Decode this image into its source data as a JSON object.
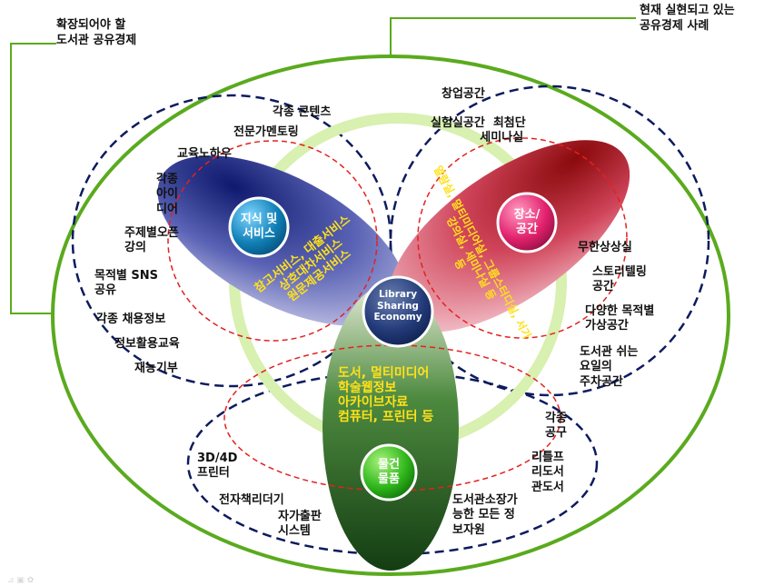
{
  "callouts": {
    "left": "확장되어야 할\n도서관 공유경제",
    "right": "현재 실현되고 있는\n공유경제 사례"
  },
  "center": {
    "label": "Library\nSharing\nEconomy"
  },
  "petals": {
    "knowledge": {
      "label": "지식 및\n서비스",
      "services": "참고서비스, 대출서비스\n상호대차서비스\n원문제공서비스"
    },
    "space": {
      "label": "장소/\n공간",
      "services": "열람실, 멀티미디어실, 그룹스터디실, 서가\n강의실, 세미나실 등\n등"
    },
    "goods": {
      "label": "물건\n물품",
      "services": "도서, 멀티미디어\n학술웹정보\n아카이브자료\n컴퓨터, 프린터 등"
    }
  },
  "outer_items": {
    "left": [
      "각종 콘텐츠",
      "전문가멘토링",
      "교육노하우",
      "각종\n아이\n디어",
      "주제별오픈\n강의",
      "목적별 SNS\n공유",
      "각종 채용정보",
      "정보활용교육",
      "재능기부"
    ],
    "right": [
      "창업공간",
      "실험실공간  최첨단\n            세미나실",
      "무한상상실",
      "스토리텔링\n공간",
      "다양한 목적별\n가상공간",
      "도서관 쉬는\n요일의\n주차공간"
    ],
    "bottom": [
      "3D/4D\n프린터",
      "전자책리더기",
      "자가출판\n시스템",
      "각종\n공구",
      "리틀프\n리도서\n관도서",
      "도서관소장가\n능한 모든 정\n보자원"
    ]
  },
  "colors": {
    "frame_green": "#5aaa1e",
    "ring_light_green": "#d8f0b0",
    "petal_blue": "#1a237e",
    "petal_red": "#9e0b0f",
    "petal_green": "#1b5e20",
    "dashed_navy": "#0d1b5e",
    "dashed_red": "#e52020",
    "label_yellow": "#ffe11a"
  }
}
